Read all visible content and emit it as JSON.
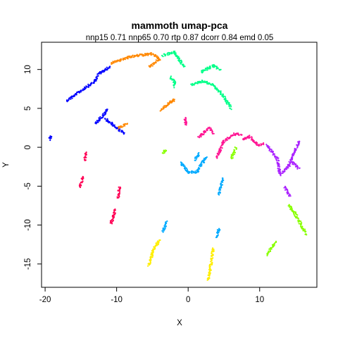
{
  "chart_data": {
    "type": "scatter",
    "title": "mammoth umap-pca",
    "subtitle": "nnp15 0.71 nnp65 0.70 rtp 0.87 dcorr 0.84 emd 0.05",
    "xlabel": "X",
    "ylabel": "Y",
    "xlim": [
      -20.5,
      18
    ],
    "ylim": [
      -18,
      13.5
    ],
    "xticks": [
      -20,
      -10,
      0,
      10
    ],
    "yticks": [
      -15,
      -10,
      -5,
      0,
      5,
      10
    ],
    "grid": false,
    "legend": "none",
    "point_shape": "filled-circle",
    "series": [
      {
        "color": "#0000FF",
        "segments": [
          [
            [
              -17,
              6
            ],
            [
              -13,
              8.5
            ],
            [
              -12.5,
              9.5
            ],
            [
              -11,
              10.3
            ]
          ],
          [
            [
              -19.4,
              1
            ],
            [
              -19.1,
              1.4
            ]
          ],
          [
            [
              -13,
              3
            ],
            [
              -11.7,
              4.3
            ],
            [
              -11.3,
              4.8
            ]
          ],
          [
            [
              -11.5,
              3.6
            ],
            [
              -10,
              2.5
            ],
            [
              -9,
              1.8
            ]
          ]
        ]
      },
      {
        "color": "#FF0055",
        "segments": [
          [
            [
              -14.5,
              -1.8
            ],
            [
              -14.2,
              -0.6
            ]
          ],
          [
            [
              -15.2,
              -5.2
            ],
            [
              -14.7,
              -3.8
            ]
          ],
          [
            [
              -10.8,
              -9.8
            ],
            [
              -10.2,
              -8
            ]
          ],
          [
            [
              -9.8,
              -6.5
            ],
            [
              -9.6,
              -5.1
            ]
          ]
        ]
      },
      {
        "color": "#FF8800",
        "segments": [
          [
            [
              -10.8,
              10.8
            ],
            [
              -8.5,
              11.5
            ],
            [
              -7,
              11.8
            ],
            [
              -5,
              12
            ],
            [
              -4,
              11.3
            ],
            [
              -5.5,
              10.3
            ]
          ],
          [
            [
              -3.8,
              4.8
            ],
            [
              -2,
              6.1
            ],
            [
              -2.6,
              5.7
            ]
          ],
          [
            [
              -9.8,
              2.5
            ],
            [
              -8.6,
              3
            ]
          ]
        ]
      },
      {
        "color": "#00FF88",
        "segments": [
          [
            [
              -3.5,
              11.8
            ],
            [
              -2,
              12.2
            ],
            [
              -1,
              11
            ],
            [
              -0.5,
              10.3
            ]
          ],
          [
            [
              -2.5,
              9
            ],
            [
              -1.8,
              8.3
            ],
            [
              -2,
              7.8
            ]
          ],
          [
            [
              0.5,
              8
            ],
            [
              2,
              8.5
            ],
            [
              3.5,
              8
            ],
            [
              5,
              6.5
            ],
            [
              6,
              5
            ]
          ],
          [
            [
              1.8,
              9.7
            ],
            [
              3.5,
              10.5
            ],
            [
              4.5,
              10
            ]
          ]
        ]
      },
      {
        "color": "#FF1493",
        "segments": [
          [
            [
              -0.5,
              3.8
            ],
            [
              -0.3,
              2.9
            ]
          ],
          [
            [
              1.5,
              1.3
            ],
            [
              3,
              2.5
            ],
            [
              3.5,
              1.8
            ]
          ],
          [
            [
              4,
              -1.3
            ],
            [
              5,
              0.8
            ],
            [
              6.7,
              1.8
            ],
            [
              7.5,
              1.5
            ]
          ],
          [
            [
              7.7,
              0.9
            ],
            [
              8.5,
              1.4
            ],
            [
              9.8,
              0.3
            ],
            [
              10.5,
              0.5
            ]
          ]
        ]
      },
      {
        "color": "#AA22FF",
        "segments": [
          [
            [
              11,
              0.3
            ],
            [
              12.5,
              -1.5
            ],
            [
              12.8,
              -3.5
            ],
            [
              14,
              -2.5
            ],
            [
              15.5,
              0.8
            ]
          ],
          [
            [
              14.5,
              -1.9
            ],
            [
              15.5,
              -2.8
            ]
          ],
          [
            [
              13.5,
              -5
            ],
            [
              14.2,
              -6.3
            ]
          ]
        ]
      },
      {
        "color": "#88FF00",
        "segments": [
          [
            [
              -3.5,
              -0.7
            ],
            [
              -3.2,
              -0.3
            ]
          ],
          [
            [
              6,
              -1.5
            ],
            [
              6.7,
              0
            ]
          ],
          [
            [
              14,
              -7.5
            ],
            [
              14.8,
              -8.3
            ],
            [
              16.5,
              -11.2
            ]
          ],
          [
            [
              11,
              -13.8
            ],
            [
              12.3,
              -12.2
            ]
          ]
        ]
      },
      {
        "color": "#00AAFF",
        "segments": [
          [
            [
              -3.5,
              -10.8
            ],
            [
              -3,
              -9.5
            ]
          ],
          [
            [
              -1,
              -2
            ],
            [
              0,
              -3.2
            ],
            [
              1.2,
              -3.2
            ],
            [
              2.5,
              -1.3
            ]
          ],
          [
            [
              1,
              -1.6
            ],
            [
              1.5,
              -0.8
            ]
          ],
          [
            [
              4.3,
              -6
            ],
            [
              4.9,
              -4
            ]
          ],
          [
            [
              4,
              -11.5
            ],
            [
              4.3,
              -10.5
            ]
          ]
        ]
      },
      {
        "color": "#FFEE00",
        "segments": [
          [
            [
              -5.5,
              -15.2
            ],
            [
              -4.8,
              -13
            ],
            [
              -4,
              -12
            ]
          ],
          [
            [
              2.8,
              -17
            ],
            [
              3.2,
              -15
            ],
            [
              3.5,
              -13
            ]
          ]
        ]
      }
    ]
  }
}
